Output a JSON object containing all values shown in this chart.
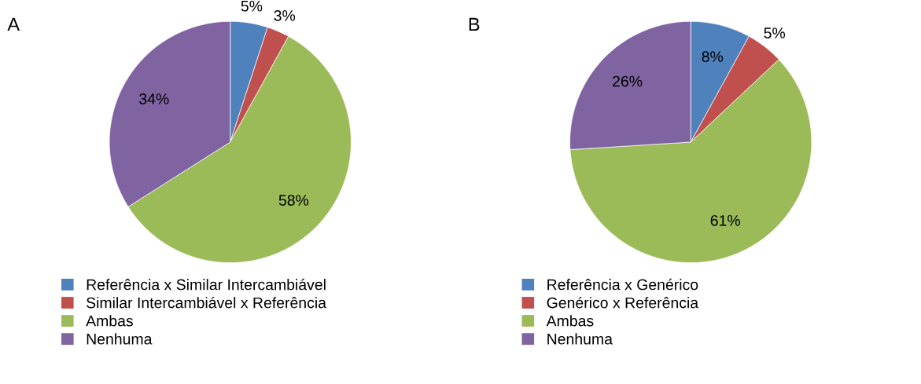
{
  "chart_data": [
    {
      "type": "pie",
      "title": "A",
      "categories": [
        "Referência x Similar Intercambiável",
        "Similar Intercambiável x Referência",
        "Ambas",
        "Nenhuma"
      ],
      "values": [
        5,
        3,
        58,
        34
      ],
      "colors": [
        "#4f81bd",
        "#c0504d",
        "#9bbb59",
        "#8064a2"
      ],
      "value_labels": [
        "5%",
        "3%",
        "58%",
        "34%"
      ],
      "legend": "bottom"
    },
    {
      "type": "pie",
      "title": "B",
      "categories": [
        "Referência x Genérico",
        "Genérico x Referência",
        "Ambas",
        "Nenhuma"
      ],
      "values": [
        8,
        5,
        61,
        26
      ],
      "colors": [
        "#4f81bd",
        "#c0504d",
        "#9bbb59",
        "#8064a2"
      ],
      "value_labels": [
        "8%",
        "5%",
        "61%",
        "26%"
      ],
      "legend": "bottom"
    }
  ]
}
